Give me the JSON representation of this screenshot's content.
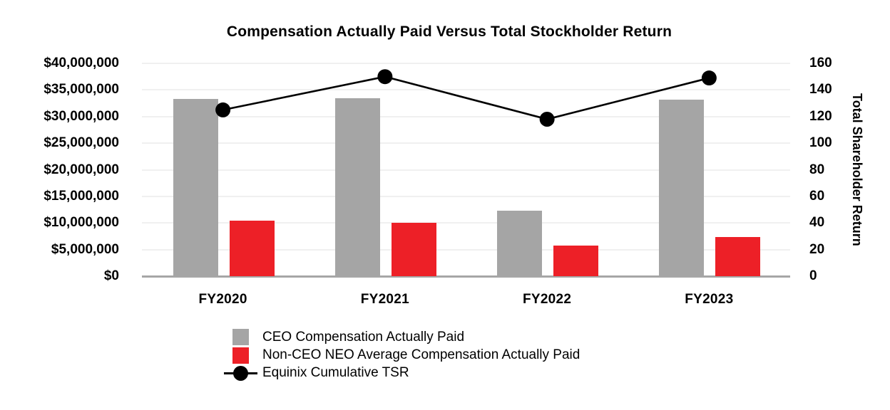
{
  "title": "Compensation Actually Paid Versus Total Stockholder Return",
  "chart_data": {
    "type": "combo",
    "categories": [
      "FY2020",
      "FY2021",
      "FY2022",
      "FY2023"
    ],
    "series": [
      {
        "name": "CEO Compensation Actually Paid",
        "type": "bar",
        "axis": "left",
        "color": "#A5A5A5",
        "values": [
          33300000,
          33500000,
          12300000,
          33200000
        ]
      },
      {
        "name": "Non-CEO NEO Average Compensation Actually Paid",
        "type": "bar",
        "axis": "left",
        "color": "#ED2027",
        "values": [
          10400000,
          10100000,
          5700000,
          7400000
        ]
      },
      {
        "name": "Equinix Cumulative TSR",
        "type": "line",
        "axis": "right",
        "color": "#000000",
        "values": [
          125,
          150,
          118,
          149
        ]
      }
    ],
    "left_axis": {
      "min": 0,
      "max": 40000000,
      "step": 5000000,
      "tick_labels": [
        "$0",
        "$5,000,000",
        "$10,000,000",
        "$15,000,000",
        "$20,000,000",
        "$25,000,000",
        "$30,000,000",
        "$35,000,000",
        "$40,000,000"
      ]
    },
    "right_axis": {
      "min": 0,
      "max": 160,
      "step": 20,
      "title": "Total Shareholder Return",
      "tick_labels": [
        "0",
        "20",
        "40",
        "60",
        "80",
        "100",
        "120",
        "140",
        "160"
      ]
    },
    "legend_position": "bottom",
    "grid": true
  },
  "colors": {
    "background": "#FFFFFF",
    "text": "#000000",
    "gridline": "#F0F0F0",
    "baseline": "#A6A6A6",
    "bar_ceo": "#A5A5A5",
    "bar_neo": "#ED2027",
    "tsr_line": "#000000"
  }
}
